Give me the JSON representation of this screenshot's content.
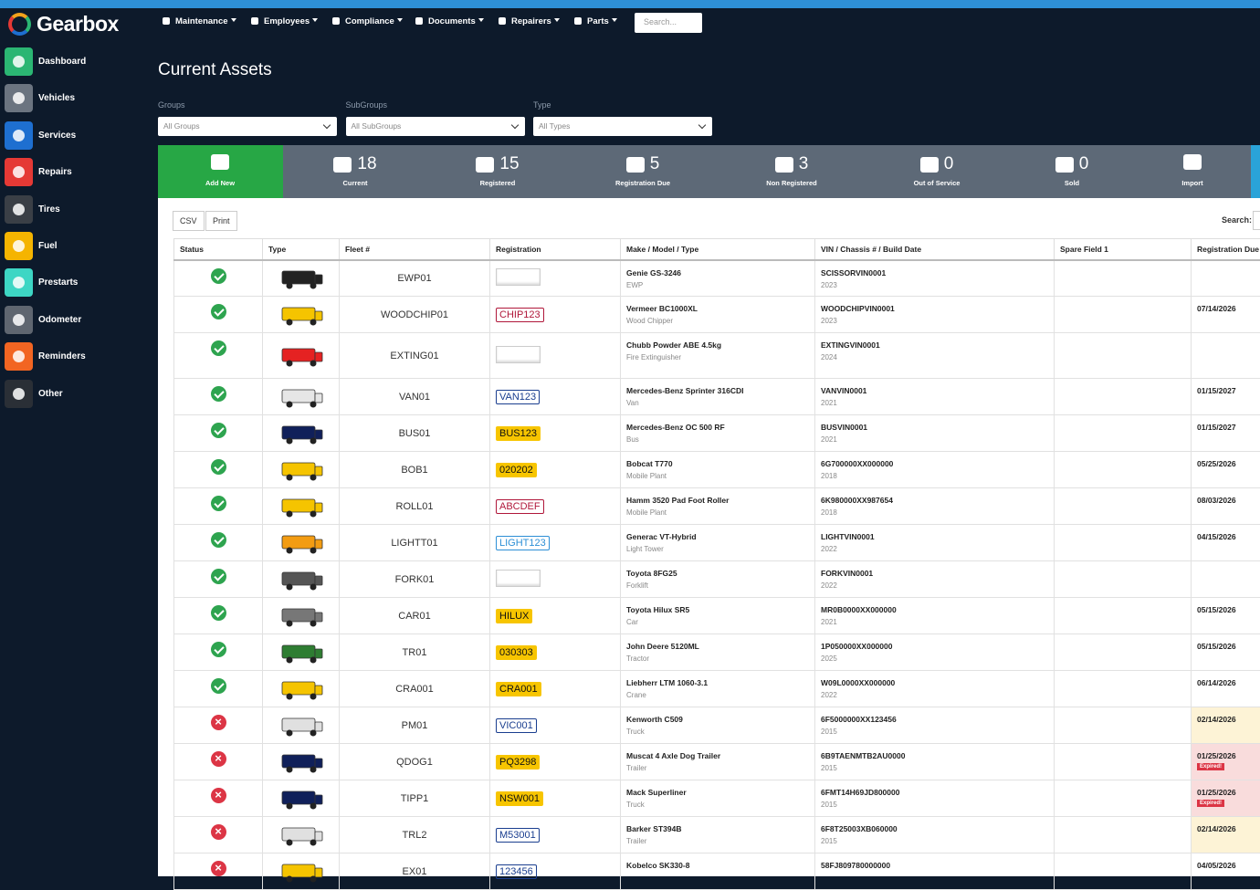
{
  "brand": "Gearbox",
  "nav": [
    "Maintenance",
    "Employees",
    "Compliance",
    "Documents",
    "Repairers",
    "Parts"
  ],
  "search_placeholder": "Search...",
  "sidebar": [
    {
      "label": "Dashboard",
      "color": "#2bb673"
    },
    {
      "label": "Vehicles",
      "color": "#6b7480"
    },
    {
      "label": "Services",
      "color": "#1e6fd0"
    },
    {
      "label": "Repairs",
      "color": "#e53935"
    },
    {
      "label": "Tires",
      "color": "#3a3f46"
    },
    {
      "label": "Fuel",
      "color": "#f5b400"
    },
    {
      "label": "Prestarts",
      "color": "#3dd6c4"
    },
    {
      "label": "Odometer",
      "color": "#5f6670"
    },
    {
      "label": "Reminders",
      "color": "#f26522"
    },
    {
      "label": "Other",
      "color": "#2a2f36"
    }
  ],
  "page_title": "Current Assets",
  "filters": [
    {
      "label": "Groups",
      "value": "All Groups"
    },
    {
      "label": "SubGroups",
      "value": "All SubGroups"
    },
    {
      "label": "Type",
      "value": "All Types"
    }
  ],
  "stats": [
    {
      "label": "Add New"
    },
    {
      "value": 18,
      "label": "Current"
    },
    {
      "value": 15,
      "label": "Registered"
    },
    {
      "value": 5,
      "label": "Registration Due"
    },
    {
      "value": 3,
      "label": "Non Registered"
    },
    {
      "value": 0,
      "label": "Out of Service"
    },
    {
      "value": 0,
      "label": "Sold"
    },
    {
      "label": "Import"
    }
  ],
  "table": {
    "buttons": [
      "CSV",
      "Print"
    ],
    "search_label": "Search:",
    "columns": [
      "Status",
      "Type",
      "Fleet #",
      "Registration",
      "Make / Model / Type",
      "VIN / Chassis # / Build Date",
      "Spare Field 1",
      "Registration Due"
    ],
    "rows": [
      {
        "status": "ok",
        "icon_color": "#222",
        "fleet": "EWP01",
        "registration": null,
        "plate": "blank",
        "make": "Genie GS-3246",
        "model_type": "EWP",
        "vin": "SCISSORVIN0001",
        "build": "2023",
        "due": null
      },
      {
        "status": "ok",
        "icon_color": "#f5c400",
        "fleet": "WOODCHIP01",
        "registration": "CHIP123",
        "plate": "red",
        "make": "Vermeer BC1000XL",
        "model_type": "Wood Chipper",
        "vin": "WOODCHIPVIN0001",
        "build": "2023",
        "due": "07/14/2026"
      },
      {
        "status": "ok",
        "icon_color": "#e52222",
        "fleet": "EXTING01",
        "registration": null,
        "plate": "blank",
        "make": "Chubb Powder ABE 4.5kg",
        "model_type": "Fire Extinguisher",
        "vin": "EXTINGVIN0001",
        "build": "2024",
        "due": null
      },
      {
        "status": "ok",
        "icon_color": "#e6e6e6",
        "fleet": "VAN01",
        "registration": "VAN123",
        "plate": "blue",
        "make": "Mercedes-Benz Sprinter 316CDI",
        "model_type": "Van",
        "vin": "VANVIN0001",
        "build": "2021",
        "due": "01/15/2027"
      },
      {
        "status": "ok",
        "icon_color": "#10205a",
        "fleet": "BUS01",
        "registration": "BUS123",
        "plate": "yellow",
        "make": "Mercedes-Benz OC 500 RF",
        "model_type": "Bus",
        "vin": "BUSVIN0001",
        "build": "2021",
        "due": "01/15/2027"
      },
      {
        "status": "ok",
        "icon_color": "#f5c400",
        "fleet": "BOB1",
        "registration": "020202",
        "plate": "yellow",
        "make": "Bobcat T770",
        "model_type": "Mobile Plant",
        "vin": "6G700000XX000000",
        "build": "2018",
        "due": "05/25/2026"
      },
      {
        "status": "ok",
        "icon_color": "#f5c400",
        "fleet": "ROLL01",
        "registration": "ABCDEF",
        "plate": "red",
        "make": "Hamm 3520 Pad Foot Roller",
        "model_type": "Mobile Plant",
        "vin": "6K980000XX987654",
        "build": "2018",
        "due": "08/03/2026"
      },
      {
        "status": "ok",
        "icon_color": "#f39c12",
        "fleet": "LIGHTT01",
        "registration": "LIGHT123",
        "plate": "lightblue",
        "make": "Generac VT-Hybrid",
        "model_type": "Light Tower",
        "vin": "LIGHTVIN0001",
        "build": "2022",
        "due": "04/15/2026"
      },
      {
        "status": "ok",
        "icon_color": "#555",
        "fleet": "FORK01",
        "registration": null,
        "plate": "blank",
        "make": "Toyota 8FG25",
        "model_type": "Forklift",
        "vin": "FORKVIN0001",
        "build": "2022",
        "due": null
      },
      {
        "status": "ok",
        "icon_color": "#777",
        "fleet": "CAR01",
        "registration": "HILUX",
        "plate": "yellow",
        "make": "Toyota Hilux SR5",
        "model_type": "Car",
        "vin": "MR0B0000XX000000",
        "build": "2021",
        "due": "05/15/2026"
      },
      {
        "status": "ok",
        "icon_color": "#2e7d32",
        "fleet": "TR01",
        "registration": "030303",
        "plate": "yellow",
        "make": "John Deere 5120ML",
        "model_type": "Tractor",
        "vin": "1P050000XX000000",
        "build": "2025",
        "due": "05/15/2026"
      },
      {
        "status": "ok",
        "icon_color": "#f5c400",
        "fleet": "CRA001",
        "registration": "CRA001",
        "plate": "yellow",
        "make": "Liebherr LTM 1060-3.1",
        "model_type": "Crane",
        "vin": "W09L0000XX000000",
        "build": "2022",
        "due": "06/14/2026"
      },
      {
        "status": "bad",
        "icon_color": "#e0e0e0",
        "fleet": "PM01",
        "registration": "VIC001",
        "plate": "blue",
        "make": "Kenworth C509",
        "model_type": "Truck",
        "vin": "6F5000000XX123456",
        "build": "2015",
        "due": "02/14/2026",
        "due_state": "warning"
      },
      {
        "status": "bad",
        "icon_color": "#10205a",
        "fleet": "QDOG1",
        "registration": "PQ3298",
        "plate": "yellow",
        "make": "Muscat 4 Axle Dog Trailer",
        "model_type": "Trailer",
        "vin": "6B9TAENMTB2AU0000",
        "build": "2015",
        "due": "01/25/2026",
        "due_state": "expired",
        "badge": "Expired!"
      },
      {
        "status": "bad",
        "icon_color": "#10205a",
        "fleet": "TIPP1",
        "registration": "NSW001",
        "plate": "yellow",
        "make": "Mack Superliner",
        "model_type": "Truck",
        "vin": "6FMT14H69JD800000",
        "build": "2015",
        "due": "01/25/2026",
        "due_state": "expired",
        "badge": "Expired!"
      },
      {
        "status": "bad",
        "icon_color": "#e0e0e0",
        "fleet": "TRL2",
        "registration": "M53001",
        "plate": "blue",
        "make": "Barker ST394B",
        "model_type": "Trailer",
        "vin": "6F8T25003XB060000",
        "build": "2015",
        "due": "02/14/2026",
        "due_state": "warning"
      },
      {
        "status": "bad",
        "icon_color": "#f5c400",
        "fleet": "EX01",
        "registration": "123456",
        "plate": "blue",
        "make": "Kobelco SK330-8",
        "model_type": null,
        "vin": "58FJ809780000000",
        "build": null,
        "due": "04/05/2026"
      }
    ]
  }
}
